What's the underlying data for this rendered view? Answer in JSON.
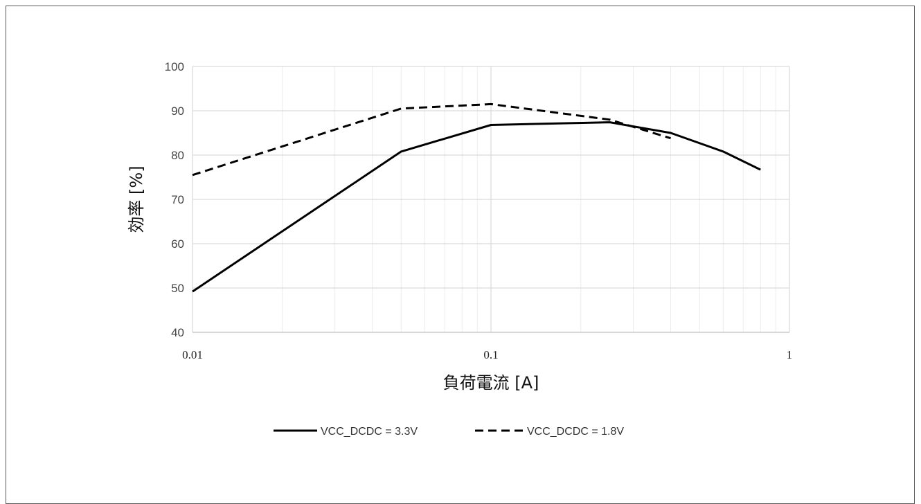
{
  "chart_data": {
    "type": "line",
    "xscale": "log",
    "xlim": [
      0.01,
      1
    ],
    "ylim": [
      40,
      100
    ],
    "xticks": [
      "0.01",
      "0.1",
      "1"
    ],
    "yticks": [
      "40",
      "50",
      "60",
      "70",
      "80",
      "90",
      "100"
    ],
    "xlabel": "負荷電流 [A]",
    "ylabel": "効率 [%]",
    "grid": true,
    "legend_position": "bottom",
    "series": [
      {
        "name": "VCC_DCDC = 3.3V",
        "style": "solid",
        "color": "#000000",
        "x": [
          0.01,
          0.05,
          0.1,
          0.25,
          0.4,
          0.6,
          0.8
        ],
        "y": [
          49.2,
          80.8,
          86.8,
          87.4,
          85.0,
          80.8,
          76.7
        ]
      },
      {
        "name": "VCC_DCDC = 1.8V",
        "style": "dashed",
        "color": "#000000",
        "x": [
          0.01,
          0.05,
          0.1,
          0.25,
          0.4
        ],
        "y": [
          75.5,
          90.5,
          91.5,
          88.0,
          83.8
        ]
      }
    ]
  }
}
